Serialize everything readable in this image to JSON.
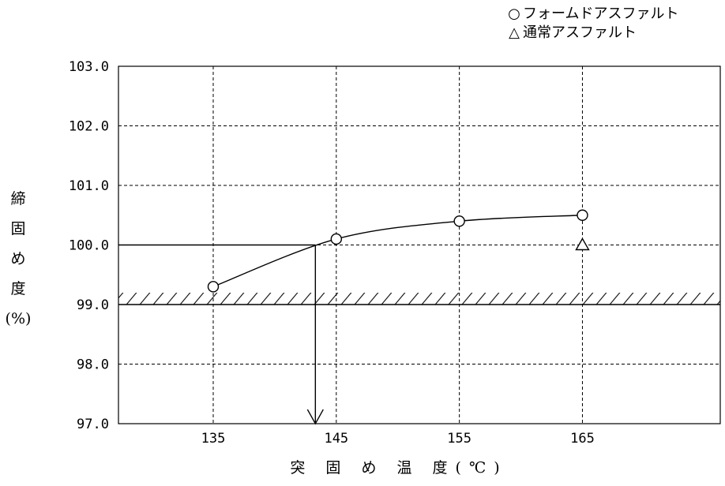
{
  "chart_data": {
    "type": "line",
    "xlabel": "突 固 め 温 度(℃)",
    "ylabel": [
      "締",
      "固",
      "め",
      "度",
      "(%)"
    ],
    "x_ticks": [
      135,
      145,
      155,
      165
    ],
    "x_tick_labels": [
      "135",
      "145",
      "155",
      "165"
    ],
    "y_ticks": [
      97.0,
      98.0,
      99.0,
      100.0,
      101.0,
      102.0,
      103.0
    ],
    "y_tick_labels": [
      "97.0",
      "98.0",
      "99.0",
      "100.0",
      "101.0",
      "102.0",
      "103.0"
    ],
    "xlim": [
      127.3,
      176.2
    ],
    "ylim": [
      97.0,
      103.0
    ],
    "grid": true,
    "legend_position": "top-right",
    "series": [
      {
        "name": "フォームドアスファルト",
        "marker": "circle",
        "points": [
          {
            "x": 135,
            "y": 99.3
          },
          {
            "x": 145,
            "y": 100.1
          },
          {
            "x": 155,
            "y": 100.4
          },
          {
            "x": 165,
            "y": 100.5
          }
        ]
      },
      {
        "name": "通常アスファルト",
        "marker": "triangle",
        "points": [
          {
            "x": 165,
            "y": 100.0
          }
        ]
      }
    ],
    "threshold": {
      "y": 99.0,
      "style": "hatched"
    },
    "annotation": {
      "x": 143.3,
      "y": 100.0,
      "description": "arrow"
    }
  },
  "legend": {
    "entries": [
      {
        "symbol": "○",
        "label": "フォームドアスファルト"
      },
      {
        "symbol": "△",
        "label": "通常アスファルト"
      }
    ]
  }
}
